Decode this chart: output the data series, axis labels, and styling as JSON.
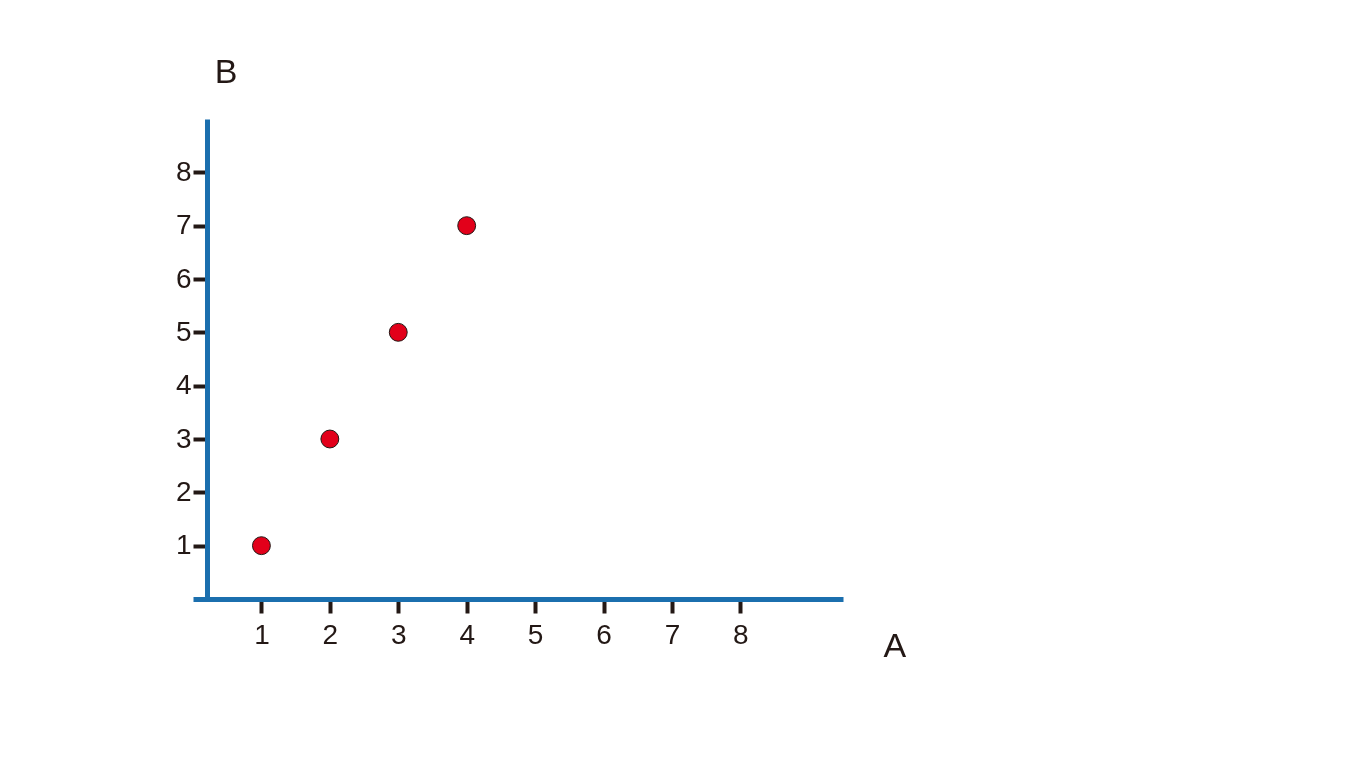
{
  "chart_data": {
    "type": "scatter",
    "xlabel": "A",
    "ylabel": "B",
    "x": [
      1,
      2,
      3,
      4
    ],
    "series": [
      {
        "color": "#e2001a",
        "values": [
          1,
          3,
          5,
          7
        ]
      }
    ],
    "xlim": [
      0,
      9.5
    ],
    "ylim": [
      0,
      9
    ],
    "xticks": [
      1,
      2,
      3,
      4,
      5,
      6,
      7,
      8
    ],
    "yticks": [
      1,
      2,
      3,
      4,
      5,
      6,
      7,
      8
    ],
    "marker": "circle",
    "grid": false
  }
}
